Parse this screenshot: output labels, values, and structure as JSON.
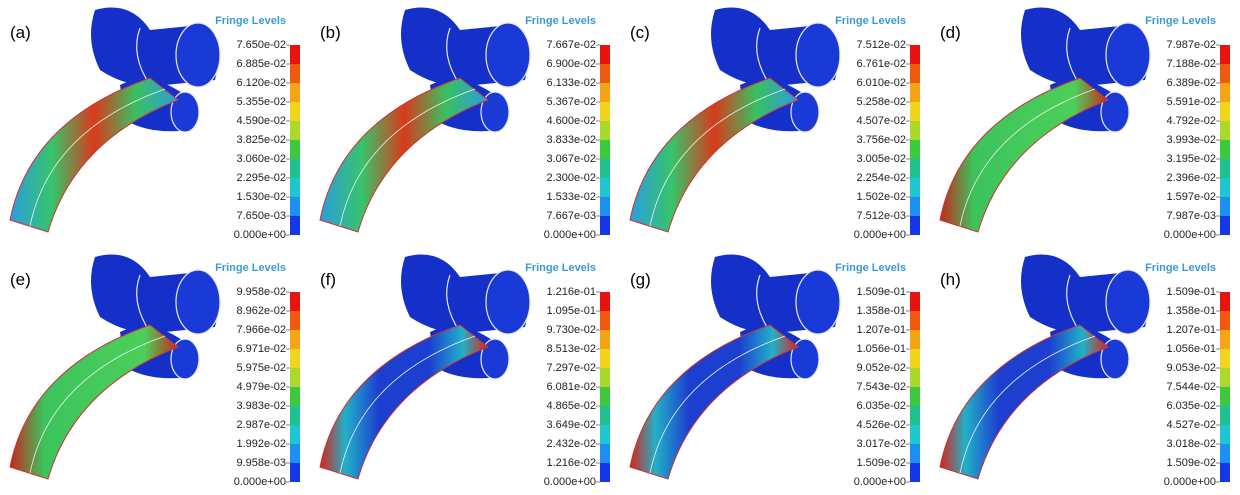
{
  "panels": [
    {
      "label": "(a)",
      "legend_title": "Fringe Levels",
      "levels": [
        "7.650e-02",
        "6.885e-02",
        "6.120e-02",
        "5.355e-02",
        "4.590e-02",
        "3.825e-02",
        "3.060e-02",
        "2.295e-02",
        "1.530e-02",
        "7.650e-03",
        "0.000e+00"
      ]
    },
    {
      "label": "(b)",
      "legend_title": "Fringe Levels",
      "levels": [
        "7.667e-02",
        "6.900e-02",
        "6.133e-02",
        "5.367e-02",
        "4.600e-02",
        "3.833e-02",
        "3.067e-02",
        "2.300e-02",
        "1.533e-02",
        "7.667e-03",
        "0.000e+00"
      ]
    },
    {
      "label": "(c)",
      "legend_title": "Fringe Levels",
      "levels": [
        "7.512e-02",
        "6.761e-02",
        "6.010e-02",
        "5.258e-02",
        "4.507e-02",
        "3.756e-02",
        "3.005e-02",
        "2.254e-02",
        "1.502e-02",
        "7.512e-03",
        "0.000e+00"
      ]
    },
    {
      "label": "(d)",
      "legend_title": "Fringe Levels",
      "levels": [
        "7.987e-02",
        "7.188e-02",
        "6.389e-02",
        "5.591e-02",
        "4.792e-02",
        "3.993e-02",
        "3.195e-02",
        "2.396e-02",
        "1.597e-02",
        "7.987e-03",
        "0.000e+00"
      ]
    },
    {
      "label": "(e)",
      "legend_title": "Fringe Levels",
      "levels": [
        "9.958e-02",
        "8.962e-02",
        "7.966e-02",
        "6.971e-02",
        "5.975e-02",
        "4.979e-02",
        "3.983e-02",
        "2.987e-02",
        "1.992e-02",
        "9.958e-03",
        "0.000e+00"
      ]
    },
    {
      "label": "(f)",
      "legend_title": "Fringe Levels",
      "levels": [
        "1.216e-01",
        "1.095e-01",
        "9.730e-02",
        "8.513e-02",
        "7.297e-02",
        "6.081e-02",
        "4.865e-02",
        "3.649e-02",
        "2.432e-02",
        "1.216e-02",
        "0.000e+00"
      ]
    },
    {
      "label": "(g)",
      "legend_title": "Fringe Levels",
      "levels": [
        "1.509e-01",
        "1.358e-01",
        "1.207e-01",
        "1.056e-01",
        "9.052e-02",
        "7.543e-02",
        "6.035e-02",
        "4.526e-02",
        "3.017e-02",
        "1.509e-02",
        "0.000e+00"
      ]
    },
    {
      "label": "(h)",
      "legend_title": "Fringe Levels",
      "levels": [
        "1.509e-01",
        "1.358e-01",
        "1.207e-01",
        "1.056e-01",
        "9.053e-02",
        "7.544e-02",
        "6.035e-02",
        "4.527e-02",
        "3.018e-02",
        "1.509e-02",
        "0.000e+00"
      ]
    }
  ]
}
